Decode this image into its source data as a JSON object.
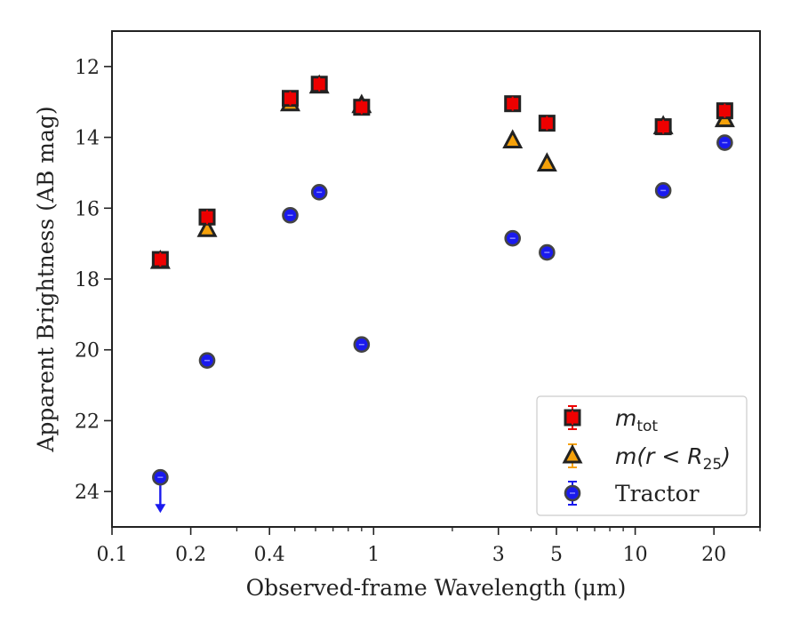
{
  "chart_data": {
    "type": "scatter",
    "xlabel": "Observed-frame Wavelength (μm)",
    "ylabel": "Apparent Brightness (AB mag)",
    "xscale": "log",
    "xlim": [
      0.1,
      30
    ],
    "ylim": [
      25.0,
      11.0
    ],
    "y_inverted": true,
    "x_ticks": [
      0.1,
      0.2,
      0.4,
      1,
      3,
      5,
      10,
      20
    ],
    "x_tick_labels": [
      "0.1",
      "0.2",
      "0.4",
      "1",
      "3",
      "5",
      "10",
      "20"
    ],
    "y_ticks": [
      12,
      14,
      16,
      18,
      20,
      22,
      24
    ],
    "y_tick_labels": [
      "12",
      "14",
      "16",
      "18",
      "20",
      "22",
      "24"
    ],
    "grid": false,
    "legend_position": "lower-right",
    "series": [
      {
        "key": "mtot",
        "name": "m_tot",
        "legend_main": "m",
        "legend_sub": "tot",
        "marker": "square",
        "color": "#ee0000",
        "edge": "#222222",
        "points": [
          {
            "x": 0.153,
            "y": 17.45
          },
          {
            "x": 0.231,
            "y": 16.25
          },
          {
            "x": 0.48,
            "y": 12.9
          },
          {
            "x": 0.62,
            "y": 12.5
          },
          {
            "x": 0.9,
            "y": 13.15
          },
          {
            "x": 3.4,
            "y": 13.05
          },
          {
            "x": 4.6,
            "y": 13.6
          },
          {
            "x": 12.8,
            "y": 13.7
          },
          {
            "x": 22.0,
            "y": 13.25
          }
        ]
      },
      {
        "key": "m25",
        "name": "m(r < R_25)",
        "legend_main": "m(r < R",
        "legend_sub": "25",
        "legend_close": ")",
        "marker": "triangle",
        "color": "#f5a10a",
        "edge": "#222222",
        "points": [
          {
            "x": 0.153,
            "y": 17.5
          },
          {
            "x": 0.231,
            "y": 16.6
          },
          {
            "x": 0.48,
            "y": 13.05
          },
          {
            "x": 0.62,
            "y": 12.55
          },
          {
            "x": 0.9,
            "y": 13.1
          },
          {
            "x": 3.4,
            "y": 14.1
          },
          {
            "x": 4.6,
            "y": 14.75
          },
          {
            "x": 12.8,
            "y": 13.7
          },
          {
            "x": 22.0,
            "y": 13.5
          }
        ]
      },
      {
        "key": "tractor",
        "name": "Tractor",
        "legend_main": "Tractor",
        "marker": "circle",
        "color": "#1a1aee",
        "edge": "#444444",
        "points": [
          {
            "x": 0.153,
            "y": 23.6,
            "upper_limit": true
          },
          {
            "x": 0.231,
            "y": 20.3
          },
          {
            "x": 0.48,
            "y": 16.2
          },
          {
            "x": 0.62,
            "y": 15.55
          },
          {
            "x": 0.9,
            "y": 19.85
          },
          {
            "x": 3.4,
            "y": 16.85
          },
          {
            "x": 4.6,
            "y": 17.25
          },
          {
            "x": 12.8,
            "y": 15.5
          },
          {
            "x": 22.0,
            "y": 14.15
          }
        ]
      }
    ]
  }
}
